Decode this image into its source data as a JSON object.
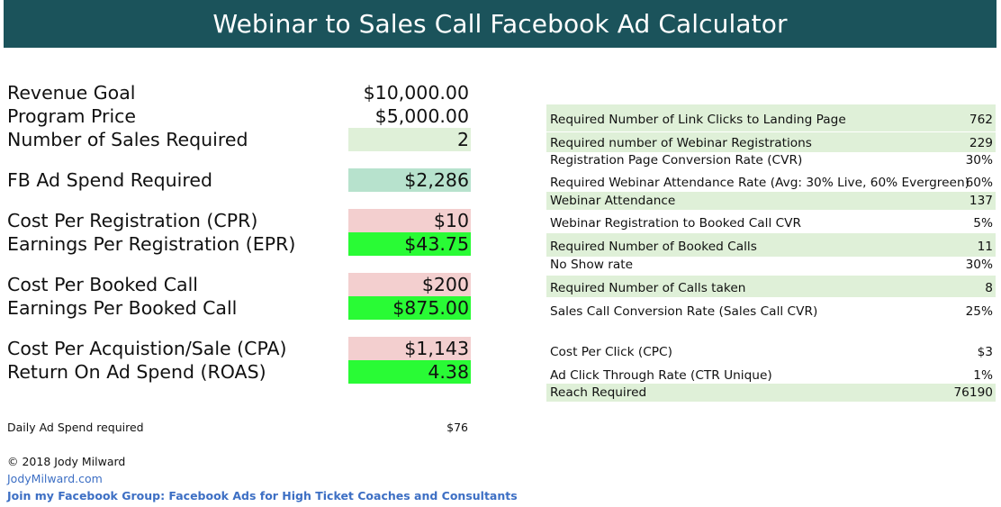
{
  "header": {
    "title": "Webinar to Sales Call Facebook Ad Calculator"
  },
  "left": {
    "revenue_goal": {
      "label": "Revenue Goal",
      "value": "$10,000.00"
    },
    "program_price": {
      "label": "Program Price",
      "value": "$5,000.00"
    },
    "sales_required": {
      "label": "Number of Sales Required",
      "value": "2"
    },
    "fb_ad_spend": {
      "label": "FB Ad Spend Required",
      "value": "$2,286"
    },
    "cpr": {
      "label": "Cost Per Registration (CPR)",
      "value": "$10"
    },
    "epr": {
      "label": "Earnings Per Registration (EPR)",
      "value": "$43.75"
    },
    "cost_booked_call": {
      "label": "Cost Per Booked Call",
      "value": "$200"
    },
    "earnings_booked_call": {
      "label": "Earnings Per Booked Call",
      "value": "$875.00"
    },
    "cpa": {
      "label": "Cost Per Acquistion/Sale (CPA)",
      "value": "$1,143"
    },
    "roas": {
      "label": "Return On Ad Spend (ROAS)",
      "value": "4.38"
    },
    "daily_spend": {
      "label": "Daily Ad Spend required",
      "value": "$76"
    }
  },
  "right": {
    "link_clicks": {
      "label": "Required Number of Link Clicks to Landing Page",
      "value": "762"
    },
    "webinar_regs": {
      "label": "Required number of Webinar Registrations",
      "value": "229"
    },
    "reg_cvr": {
      "label": "Registration Page Conversion Rate (CVR)",
      "value": "30%"
    },
    "attendance_rate": {
      "label": "Required Webinar Attendance Rate (Avg: 30% Live, 60% Evergreen)",
      "value": "60%"
    },
    "attendance": {
      "label": "Webinar Attendance",
      "value": "137"
    },
    "reg_to_call_cvr": {
      "label": "Webinar Registration to Booked Call CVR",
      "value": "5%"
    },
    "booked_calls": {
      "label": "Required Number of Booked Calls",
      "value": "11"
    },
    "no_show": {
      "label": "No Show rate",
      "value": "30%"
    },
    "calls_taken": {
      "label": "Required Number of Calls taken",
      "value": "8"
    },
    "sales_call_cvr": {
      "label": "Sales Call Conversion Rate (Sales Call CVR)",
      "value": "25%"
    },
    "cpc": {
      "label": "Cost Per Click (CPC)",
      "value": "$3"
    },
    "ctr": {
      "label": "Ad Click Through Rate (CTR Unique)",
      "value": "1%"
    },
    "reach": {
      "label": "Reach Required",
      "value": "76190"
    }
  },
  "footer": {
    "copyright": "© 2018 Jody Milward",
    "website": "JodyMilward.com",
    "group": "Join my Facebook Group: Facebook Ads for High Ticket Coaches and Consultants"
  },
  "colors": {
    "header_bg": "#1b535b",
    "light_green": "#dff0d8",
    "teal": "#b7e2cd",
    "pink": "#f3cfcf",
    "bright_green": "#29fb35",
    "link": "#3d6fc4"
  }
}
